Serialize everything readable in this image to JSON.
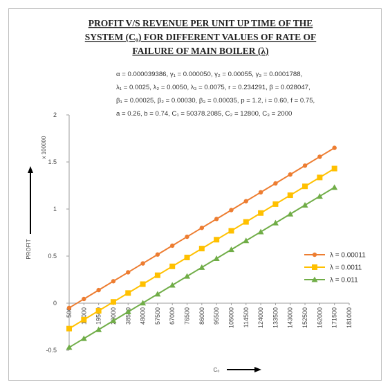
{
  "chart_data": {
    "type": "line",
    "title_lines": [
      "PROFIT  V/S REVENUE PER UNIT UP TIME OF THE",
      "SYSTEM (C₀) FOR DIFFERENT VALUES OF RATE  OF",
      "FAILURE OF MAIN BOILER (λ)"
    ],
    "param_lines": [
      "α = 0.000039386, γ₁ = 0.000050, γ₂ = 0.00055, γ₃ = 0.0001788,",
      "λ₁ = 0.0025,  λ₂ = 0.0050, λ₃ = 0.0075, r = 0.234291, β = 0.028047,",
      "β₁ = 0.00025, β₂ = 0.00030, β₃ = 0.00035, p = 1.2, i = 0.60, f = 0.75,",
      "a = 0.26, b = 0.74, C₁ = 50378.2085, C₂ = 12800, C₃ = 2000"
    ],
    "xlabel": "C₀",
    "ylabel": "PROFIT",
    "y_multiplier": "x 100000",
    "x_ticks": [
      "500",
      "10000",
      "19500",
      "29000",
      "38500",
      "48000",
      "57500",
      "67000",
      "76500",
      "86000",
      "95500",
      "105000",
      "114500",
      "124000",
      "133500",
      "143000",
      "152500",
      "162000",
      "171500",
      "181000"
    ],
    "y_ticks": [
      "-0.5",
      "0",
      "0.5",
      "1",
      "1.5",
      "2"
    ],
    "ylim": [
      -0.5,
      2
    ],
    "xlim": [
      500,
      181000
    ],
    "grid": false,
    "legend_position": "right-middle",
    "x": [
      500,
      10000,
      19500,
      29000,
      38500,
      48000,
      57500,
      67000,
      76500,
      86000,
      95500,
      105000,
      114500,
      124000,
      133500,
      143000,
      152500,
      162000,
      171500
    ],
    "series": [
      {
        "name": "λ = 0.00011",
        "color": "#ED7D31",
        "marker": "circle",
        "start": -0.05,
        "end": 1.65
      },
      {
        "name": "λ = 0.0011",
        "color": "#FFC000",
        "marker": "square",
        "start": -0.27,
        "end": 1.43
      },
      {
        "name": "λ = 0.011",
        "color": "#70AD47",
        "marker": "triangle",
        "start": -0.47,
        "end": 1.23
      }
    ]
  }
}
